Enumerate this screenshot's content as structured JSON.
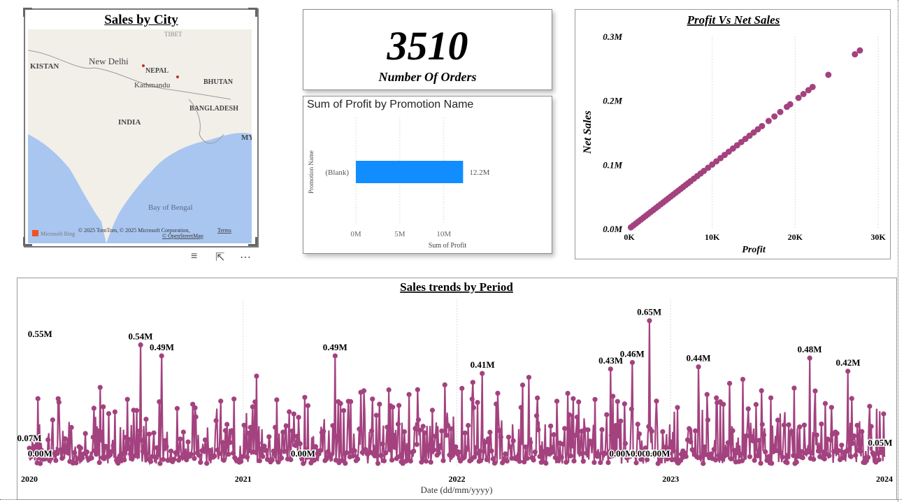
{
  "map": {
    "title": "Sales by City",
    "labels": {
      "tibet": "TIBET",
      "pakistan": "KISTAN",
      "new_delhi": "New Delhi",
      "nepal": "NEPAL",
      "kathmandu": "Kathmandu",
      "bhutan": "BHUTAN",
      "bangladesh": "BANGLADESH",
      "india": "INDIA",
      "myanmar": "MY",
      "bay": "Bay of Bengal"
    },
    "attribution": "© 2025 TomTom, © 2025 Microsoft Corporation,",
    "terms": "Terms",
    "osm": "© OpenStreetMap",
    "bing": "Microsoft Bing",
    "colors": {
      "land": "#f2efe9",
      "water": "#a9c6f0"
    }
  },
  "kpi": {
    "value": "3510",
    "label": "Number Of Orders"
  },
  "chart_data": [
    {
      "type": "bar",
      "title": "Sum of Profit by Promotion Name",
      "xlabel": "Sum of Profit",
      "ylabel": "Promotion Name",
      "categories": [
        "(Blank)"
      ],
      "values": [
        12200000
      ],
      "data_labels": [
        "12.2M"
      ],
      "xticks": [
        "0M",
        "5M",
        "10M"
      ],
      "xlim": [
        0,
        14000000
      ],
      "color": "#118dff"
    },
    {
      "type": "scatter",
      "title": "Profit Vs Net Sales",
      "xlabel": "Profit",
      "ylabel": "Net Sales",
      "xticks": [
        "0K",
        "10K",
        "20K",
        "30K"
      ],
      "yticks": [
        "0.0M",
        "0.1M",
        "0.2M",
        "0.3M"
      ],
      "xlim": [
        0,
        30000
      ],
      "ylim": [
        0,
        300000
      ],
      "color": "#a3427f",
      "points": [
        [
          200,
          2000
        ],
        [
          500,
          5000
        ],
        [
          800,
          8000
        ],
        [
          1100,
          11000
        ],
        [
          1400,
          14000
        ],
        [
          1700,
          17000
        ],
        [
          2000,
          20000
        ],
        [
          2300,
          23000
        ],
        [
          2600,
          26000
        ],
        [
          2900,
          29000
        ],
        [
          3200,
          32000
        ],
        [
          3500,
          35000
        ],
        [
          3800,
          38000
        ],
        [
          4100,
          41000
        ],
        [
          4400,
          44000
        ],
        [
          4700,
          47000
        ],
        [
          5000,
          50000
        ],
        [
          5300,
          53000
        ],
        [
          5600,
          56000
        ],
        [
          5900,
          59000
        ],
        [
          6200,
          62000
        ],
        [
          6500,
          65000
        ],
        [
          6800,
          68000
        ],
        [
          7100,
          71000
        ],
        [
          7400,
          74000
        ],
        [
          7800,
          78000
        ],
        [
          8200,
          82000
        ],
        [
          8600,
          86000
        ],
        [
          9000,
          90000
        ],
        [
          9500,
          95000
        ],
        [
          10000,
          100000
        ],
        [
          10500,
          105000
        ],
        [
          11000,
          110000
        ],
        [
          11500,
          115000
        ],
        [
          12000,
          120000
        ],
        [
          12500,
          125000
        ],
        [
          13000,
          130000
        ],
        [
          13500,
          135000
        ],
        [
          14000,
          140000
        ],
        [
          14500,
          145000
        ],
        [
          15000,
          150000
        ],
        [
          15500,
          155000
        ],
        [
          16000,
          160000
        ],
        [
          16800,
          168000
        ],
        [
          17500,
          175000
        ],
        [
          18200,
          182000
        ],
        [
          19000,
          190000
        ],
        [
          19400,
          194000
        ],
        [
          20400,
          204000
        ],
        [
          21000,
          210000
        ],
        [
          21600,
          216000
        ],
        [
          22100,
          221000
        ],
        [
          24000,
          240000
        ],
        [
          27200,
          272000
        ],
        [
          27800,
          278000
        ]
      ]
    },
    {
      "type": "line",
      "title": "Sales trends by Period",
      "xlabel": "Date (dd/mm/yyyy)",
      "xticks": [
        "2020",
        "2021",
        "2022",
        "2023",
        "2024"
      ],
      "ylim": [
        0,
        0.7
      ],
      "color": "#a3427f",
      "annotations": [
        {
          "label": "0.55M",
          "year": 2020.05,
          "value": 0.55
        },
        {
          "label": "0.07M",
          "year": 2020.0,
          "value": 0.07
        },
        {
          "label": "0.00M",
          "year": 2020.05,
          "value": 0.0
        },
        {
          "label": "0.54M",
          "year": 2020.52,
          "value": 0.54
        },
        {
          "label": "0.49M",
          "year": 2020.62,
          "value": 0.49
        },
        {
          "label": "0.49M",
          "year": 2021.43,
          "value": 0.49
        },
        {
          "label": "0.00M",
          "year": 2021.28,
          "value": 0.0
        },
        {
          "label": "0.41M",
          "year": 2022.12,
          "value": 0.41
        },
        {
          "label": "0.43M",
          "year": 2022.72,
          "value": 0.43
        },
        {
          "label": "0.46M",
          "year": 2022.82,
          "value": 0.46
        },
        {
          "label": "0.65M",
          "year": 2022.9,
          "value": 0.65
        },
        {
          "label": "0.00M",
          "year": 2022.77,
          "value": 0.0
        },
        {
          "label": "0.00M",
          "year": 2022.87,
          "value": 0.0
        },
        {
          "label": "0.00M",
          "year": 2022.94,
          "value": 0.0
        },
        {
          "label": "0.44M",
          "year": 2023.13,
          "value": 0.44
        },
        {
          "label": "0.48M",
          "year": 2023.65,
          "value": 0.48
        },
        {
          "label": "0.42M",
          "year": 2023.83,
          "value": 0.42
        },
        {
          "label": "0.05M",
          "year": 2023.98,
          "value": 0.05
        }
      ]
    }
  ]
}
